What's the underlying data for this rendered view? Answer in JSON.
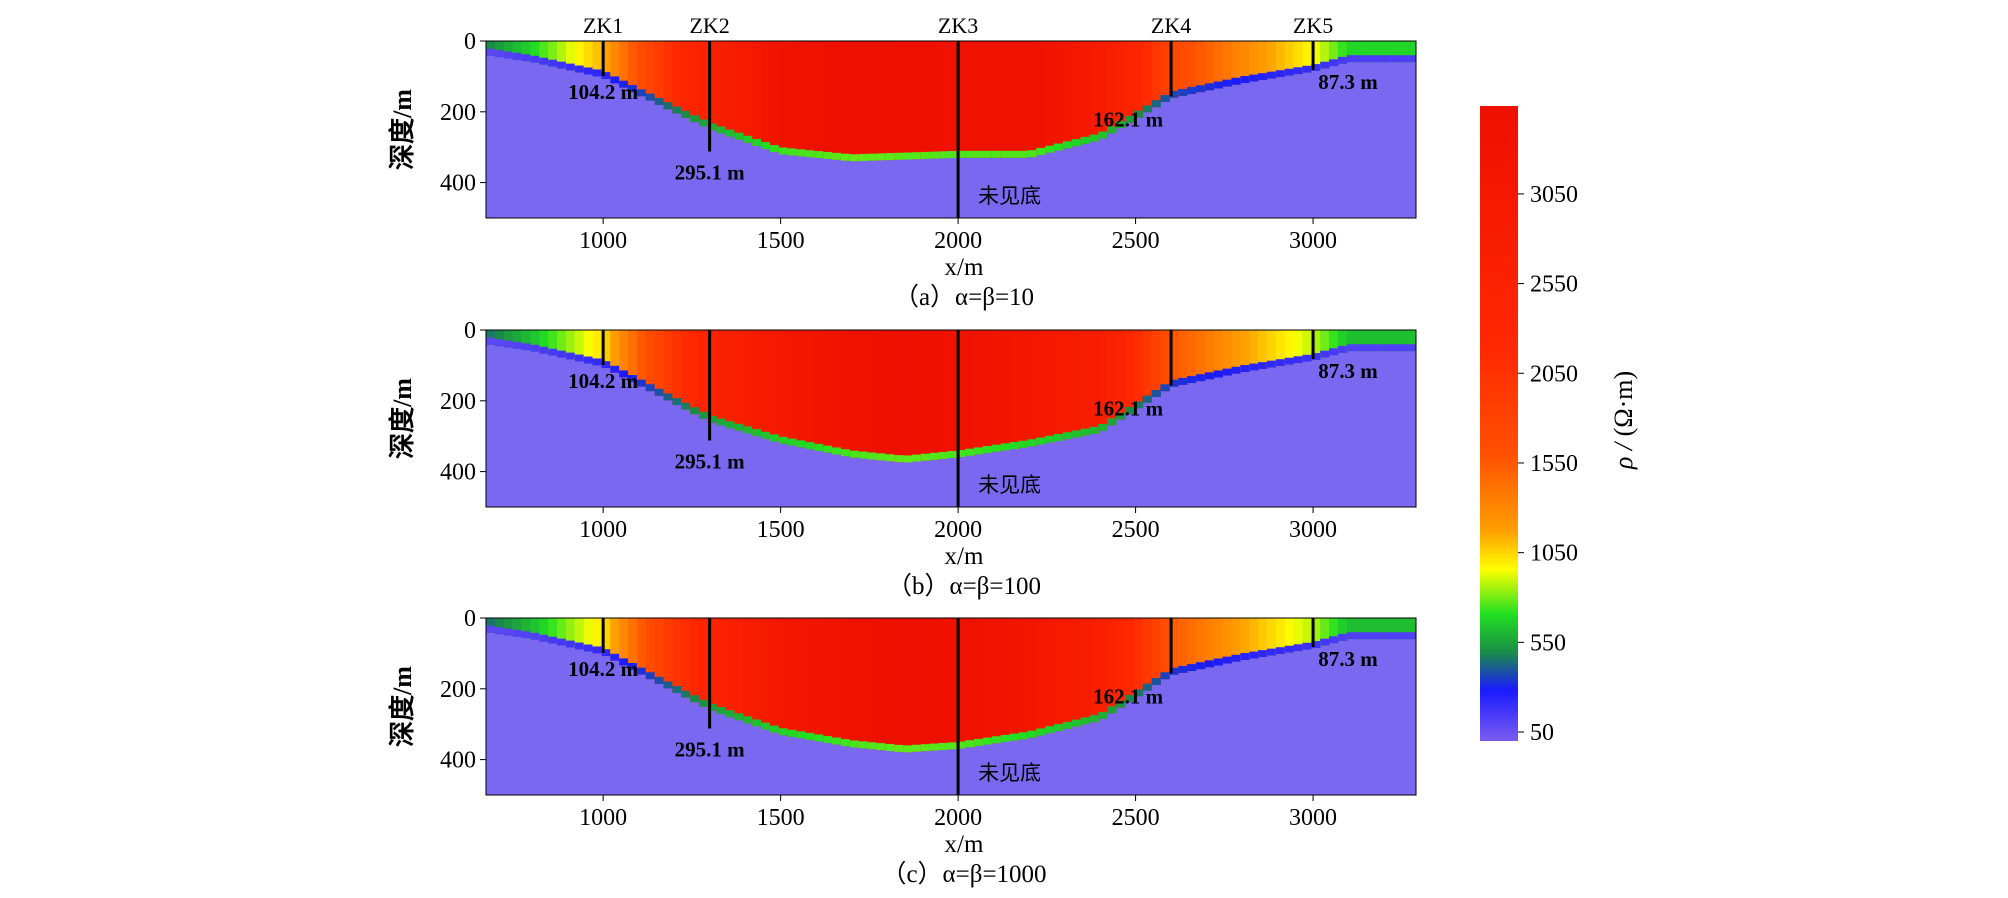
{
  "chart_data": [
    {
      "type": "heatmap",
      "caption": "（a）α=β=10",
      "xlabel": "x/m",
      "ylabel": "深度/m",
      "xlim": [
        670,
        3290
      ],
      "ylim": [
        0,
        500
      ],
      "xticks": [
        1000,
        1500,
        2000,
        2500,
        3000
      ],
      "yticks": [
        0,
        200,
        400
      ],
      "boreholes": [
        {
          "name": "ZK1",
          "x": 1000,
          "depth_label": "104.2 m",
          "depth": 104.2
        },
        {
          "name": "ZK2",
          "x": 1300,
          "depth_label": "295.1 m",
          "depth": 295.1
        },
        {
          "name": "ZK3",
          "x": 2000,
          "depth_label": "未见底",
          "depth": null
        },
        {
          "name": "ZK4",
          "x": 2600,
          "depth_label": "162.1 m",
          "depth": 162.1
        },
        {
          "name": "ZK5",
          "x": 3000,
          "depth_label": "87.3 m",
          "depth": 87.3
        }
      ],
      "basement_profile": {
        "x": [
          670,
          800,
          1000,
          1300,
          1500,
          1700,
          2000,
          2200,
          2400,
          2600,
          2800,
          3000,
          3100
        ],
        "depth": [
          40,
          60,
          104,
          250,
          320,
          340,
          330,
          330,
          280,
          162,
          120,
          87,
          60
        ]
      }
    },
    {
      "type": "heatmap",
      "caption": "（b）α=β=100",
      "xlabel": "x/m",
      "ylabel": "深度/m",
      "xlim": [
        670,
        3290
      ],
      "ylim": [
        0,
        500
      ],
      "xticks": [
        1000,
        1500,
        2000,
        2500,
        3000
      ],
      "yticks": [
        0,
        200,
        400
      ],
      "boreholes": [
        {
          "name": "ZK1",
          "x": 1000,
          "depth_label": "104.2 m",
          "depth": 104.2
        },
        {
          "name": "ZK2",
          "x": 1300,
          "depth_label": "295.1 m",
          "depth": 295.1
        },
        {
          "name": "ZK3",
          "x": 2000,
          "depth_label": "未见底",
          "depth": null
        },
        {
          "name": "ZK4",
          "x": 2600,
          "depth_label": "162.1 m",
          "depth": 162.1
        },
        {
          "name": "ZK5",
          "x": 3000,
          "depth_label": "87.3 m",
          "depth": 87.3
        }
      ],
      "basement_profile": {
        "x": [
          670,
          800,
          1000,
          1300,
          1500,
          1700,
          1850,
          2000,
          2200,
          2400,
          2600,
          2800,
          3000,
          3100
        ],
        "depth": [
          40,
          60,
          104,
          260,
          320,
          360,
          375,
          360,
          330,
          290,
          162,
          120,
          87,
          60
        ]
      }
    },
    {
      "type": "heatmap",
      "caption": "（c）α=β=1000",
      "xlabel": "x/m",
      "ylabel": "深度/m",
      "xlim": [
        670,
        3290
      ],
      "ylim": [
        0,
        500
      ],
      "xticks": [
        1000,
        1500,
        2000,
        2500,
        3000
      ],
      "yticks": [
        0,
        200,
        400
      ],
      "boreholes": [
        {
          "name": "ZK1",
          "x": 1000,
          "depth_label": "104.2 m",
          "depth": 104.2
        },
        {
          "name": "ZK2",
          "x": 1300,
          "depth_label": "295.1 m",
          "depth": 295.1
        },
        {
          "name": "ZK3",
          "x": 2000,
          "depth_label": "未见底",
          "depth": null
        },
        {
          "name": "ZK4",
          "x": 2600,
          "depth_label": "162.1 m",
          "depth": 162.1
        },
        {
          "name": "ZK5",
          "x": 3000,
          "depth_label": "87.3 m",
          "depth": 87.3
        }
      ],
      "basement_profile": {
        "x": [
          670,
          800,
          1000,
          1300,
          1500,
          1700,
          1850,
          2000,
          2200,
          2400,
          2600,
          2800,
          3000,
          3100
        ],
        "depth": [
          40,
          60,
          104,
          260,
          330,
          365,
          380,
          370,
          340,
          290,
          162,
          120,
          87,
          60
        ]
      }
    }
  ],
  "colorbar": {
    "label_prefix": "ρ / ",
    "label_unit": "(Ω·m)",
    "ticks": [
      50,
      550,
      1050,
      1550,
      2050,
      2550,
      3050
    ],
    "range": [
      0,
      3540
    ],
    "colors": [
      "#7b5cf0",
      "#1a1aff",
      "#1a9a3a",
      "#22e022",
      "#ffff00",
      "#ffa000",
      "#ff4a00",
      "#ff2000",
      "#ee1000"
    ]
  },
  "background_color": "#7b68f0"
}
